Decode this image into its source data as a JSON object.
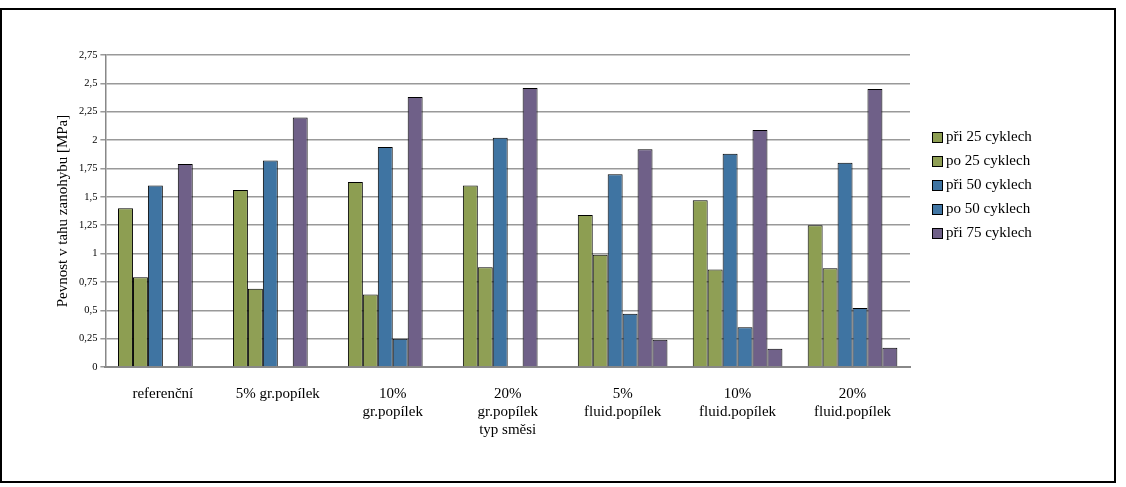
{
  "chart_data": {
    "type": "bar",
    "ylabel": "Pevnost v tahu zanohybu [MPa]",
    "categories": [
      "referenční",
      "5% gr.popílek",
      "10%\ngr.popílek",
      "20%\ngr.popílek\ntyp směsi",
      "5%\nfluid.popílek",
      "10%\nfluid.popílek",
      "20%\nfluid.popílek"
    ],
    "series": [
      {
        "name": "při 25 cyklech",
        "color": "#8d9e52",
        "values": [
          1.4,
          1.56,
          1.63,
          1.6,
          1.34,
          1.47,
          1.25
        ]
      },
      {
        "name": "po 25 cyklech",
        "color": "#8f9f55",
        "values": [
          0.79,
          0.69,
          0.64,
          0.88,
          0.99,
          0.86,
          0.87
        ]
      },
      {
        "name": "při 50 cyklech",
        "color": "#3f74a2",
        "values": [
          1.6,
          1.82,
          1.94,
          2.02,
          1.7,
          1.88,
          1.8
        ]
      },
      {
        "name": "po 50 cyklech",
        "color": "#4176a4",
        "values": [
          null,
          null,
          0.25,
          null,
          0.47,
          0.35,
          0.52
        ]
      },
      {
        "name": "při 75 cyklech",
        "color": "#6f6088",
        "values": [
          1.79,
          2.2,
          2.38,
          2.46,
          1.92,
          2.09,
          2.45
        ]
      },
      {
        "color": "#71628a",
        "values": [
          null,
          null,
          null,
          null,
          0.24,
          0.16,
          0.17
        ]
      }
    ],
    "ylim": [
      0,
      2.75
    ],
    "yticks": [
      0,
      {
        "value": 0.25,
        "label": "0,25"
      },
      {
        "value": 0.5,
        "label": "0,5"
      },
      {
        "value": 0.75,
        "label": "0,75"
      },
      1,
      {
        "value": 1.25,
        "label": "1,25"
      },
      {
        "value": 1.5,
        "label": "1,5"
      },
      {
        "value": 1.75,
        "label": "1,75"
      },
      2,
      {
        "value": 2.25,
        "label": "2,25"
      },
      {
        "value": 2.5,
        "label": "2,5"
      },
      {
        "value": 2.75,
        "label": "2,75"
      }
    ],
    "grid": "y",
    "legend": "right"
  }
}
